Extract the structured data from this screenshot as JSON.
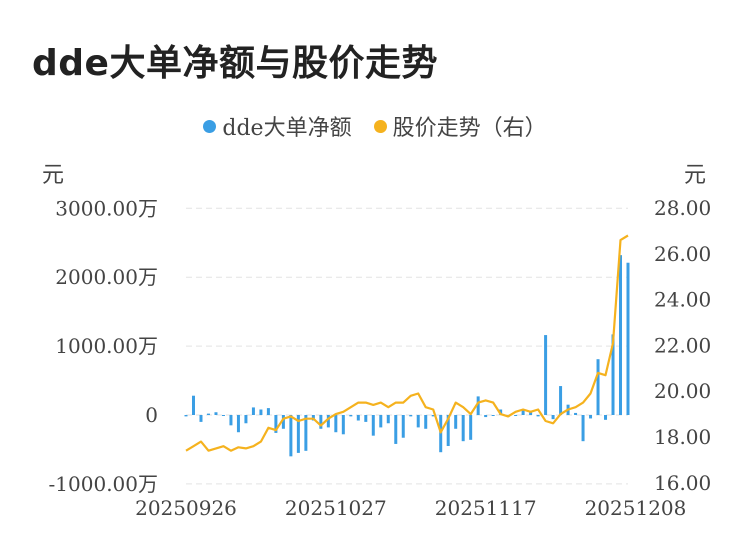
{
  "title": "dde大单净额与股价走势",
  "legend": {
    "series1": "dde大单净额",
    "series2": "股价走势（右）"
  },
  "units": {
    "left": "元",
    "right": "元"
  },
  "colors": {
    "bar": "#3a9ee4",
    "line": "#f5b21e",
    "grid": "#e3e3e3"
  },
  "chart_data": {
    "type": "bar+line",
    "title": "dde大单净额与股价走势",
    "x_tick_labels": [
      "20250926",
      "20251027",
      "20251117",
      "20251208"
    ],
    "x_tick_indices": [
      0,
      20,
      40,
      60
    ],
    "y_left": {
      "ticks": [
        -1000,
        0,
        1000,
        2000,
        3000
      ],
      "tick_labels": [
        "-1000.00万",
        "0",
        "1000.00万",
        "2000.00万",
        "3000.00万"
      ],
      "range": [
        -1000,
        3000
      ]
    },
    "y_right": {
      "ticks": [
        16,
        18,
        20,
        22,
        24,
        26,
        28
      ],
      "tick_labels": [
        "16.00",
        "18.00",
        "20.00",
        "22.00",
        "24.00",
        "26.00",
        "28.00"
      ],
      "range": [
        16,
        28
      ]
    },
    "grid": true,
    "legend_position": "top-center",
    "series": [
      {
        "name": "dde大单净额",
        "kind": "bar",
        "axis": "left",
        "values": [
          -20,
          280,
          -100,
          20,
          40,
          0,
          -150,
          -250,
          -120,
          110,
          80,
          100,
          -260,
          -200,
          -600,
          -550,
          -520,
          -80,
          -200,
          -180,
          -250,
          -280,
          -20,
          -80,
          -100,
          -300,
          -180,
          -120,
          -420,
          -330,
          -20,
          -180,
          -200,
          -20,
          -540,
          -450,
          -200,
          -380,
          -360,
          270,
          -30,
          -10,
          80,
          -30,
          0,
          70,
          60,
          -20,
          1160,
          -60,
          420,
          150,
          30,
          -380,
          -50,
          810,
          -70,
          1170,
          2320,
          2210
        ]
      },
      {
        "name": "股价走势（右）",
        "kind": "line",
        "axis": "right",
        "values": [
          17.4,
          17.6,
          17.8,
          17.4,
          17.5,
          17.6,
          17.4,
          17.55,
          17.5,
          17.6,
          17.8,
          18.4,
          18.3,
          18.8,
          18.9,
          18.7,
          18.8,
          18.8,
          18.5,
          18.8,
          19.0,
          19.1,
          19.3,
          19.5,
          19.5,
          19.4,
          19.5,
          19.3,
          19.5,
          19.5,
          19.8,
          19.9,
          19.3,
          19.2,
          18.2,
          18.8,
          19.5,
          19.3,
          19.0,
          19.5,
          19.6,
          19.5,
          19.0,
          18.9,
          19.1,
          19.2,
          19.1,
          19.2,
          18.7,
          18.6,
          19.0,
          19.2,
          19.3,
          19.5,
          19.9,
          20.8,
          20.7,
          22.1,
          26.6,
          26.8
        ]
      }
    ]
  }
}
